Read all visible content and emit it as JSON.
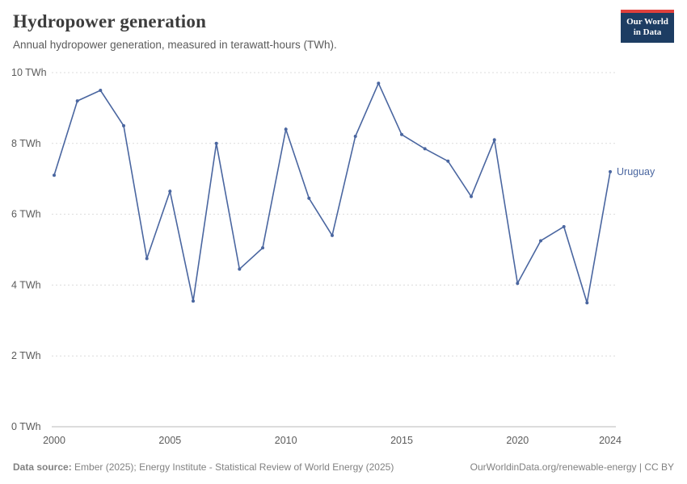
{
  "header": {
    "title": "Hydropower generation",
    "subtitle": "Annual hydropower generation, measured in terawatt-hours (TWh).",
    "logo": {
      "line1": "Our World",
      "line2": "in Data"
    }
  },
  "colors": {
    "line": "#4a66a0",
    "series_label": "#4a66a0",
    "grid": "#dcdcdc",
    "axis_zero_line": "#b9b9b9",
    "tick_text": "#5b5b5b",
    "logo_bg": "#1d3d63",
    "logo_accent": "#e0403c"
  },
  "chart_data": {
    "type": "line",
    "title": "Hydropower generation",
    "subtitle": "Annual hydropower generation, measured in terawatt-hours (TWh).",
    "ylabel": "TWh",
    "ylim": [
      0,
      10
    ],
    "yticks": [
      0,
      2,
      4,
      6,
      8,
      10
    ],
    "ytick_labels": [
      "0 TWh",
      "2 TWh",
      "4 TWh",
      "6 TWh",
      "8 TWh",
      "10 TWh"
    ],
    "xticks": [
      2000,
      2005,
      2010,
      2015,
      2020,
      2024
    ],
    "grid": "horizontal-dotted",
    "legend_position": "end-of-line",
    "series": [
      {
        "name": "Uruguay",
        "x": [
          2000,
          2001,
          2002,
          2003,
          2004,
          2005,
          2006,
          2007,
          2008,
          2009,
          2010,
          2011,
          2012,
          2013,
          2014,
          2015,
          2016,
          2017,
          2018,
          2019,
          2020,
          2021,
          2022,
          2023,
          2024
        ],
        "values": [
          7.1,
          9.2,
          9.5,
          8.5,
          4.75,
          6.65,
          3.55,
          8.0,
          4.45,
          5.05,
          8.4,
          6.45,
          5.4,
          8.2,
          9.7,
          8.25,
          7.85,
          7.5,
          6.5,
          8.1,
          4.05,
          5.25,
          5.65,
          3.5,
          7.2
        ]
      }
    ]
  },
  "footer": {
    "source_label": "Data source:",
    "source_text": " Ember (2025); Energy Institute - Statistical Review of World Energy (2025)",
    "rights": "OurWorldinData.org/renewable-energy | CC BY"
  }
}
